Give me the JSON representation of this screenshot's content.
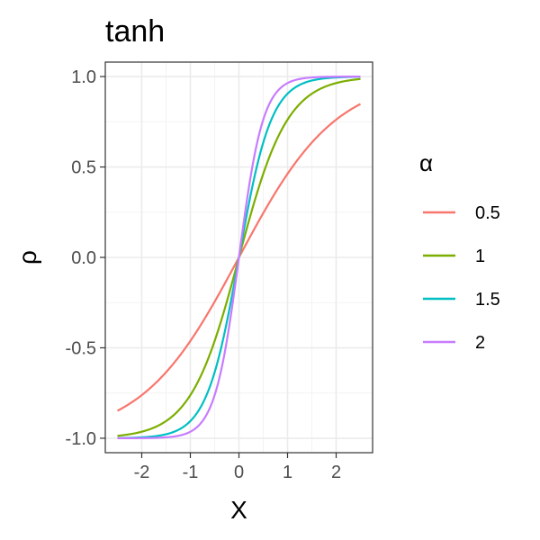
{
  "chart_data": {
    "type": "line",
    "title": "tanh",
    "xlabel": "X",
    "ylabel": "ρ",
    "xlim": [
      -2.75,
      2.75
    ],
    "ylim": [
      -1.08,
      1.08
    ],
    "x_ticks": [
      -2,
      -1,
      0,
      1,
      2
    ],
    "x_tick_labels": [
      "-2",
      "-1",
      "0",
      "1",
      "2"
    ],
    "y_ticks": [
      -1.0,
      -0.5,
      0.0,
      0.5,
      1.0
    ],
    "y_tick_labels": [
      "-1.0",
      "-0.5",
      "0.0",
      "0.5",
      "1.0"
    ],
    "x_range": [
      -2.5,
      2.5
    ],
    "grid": true,
    "legend": {
      "title": "α",
      "position": "right"
    },
    "series": [
      {
        "name": "0.5",
        "alpha": 0.5,
        "color": "#F8766D"
      },
      {
        "name": "1",
        "alpha": 1,
        "color": "#7CAE00"
      },
      {
        "name": "1.5",
        "alpha": 1.5,
        "color": "#00BFC4"
      },
      {
        "name": "2",
        "alpha": 2,
        "color": "#C77CFF"
      }
    ]
  }
}
